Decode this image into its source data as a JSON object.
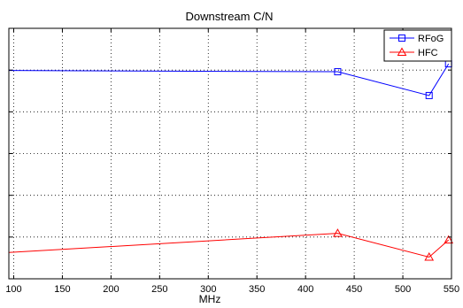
{
  "chart_data": {
    "type": "line",
    "title": "Downstream C/N",
    "xlabel": "MHz",
    "ylabel": "",
    "xlim": [
      95,
      550
    ],
    "ylim": [
      0,
      6
    ],
    "xticks": [
      100,
      150,
      200,
      250,
      300,
      350,
      400,
      450,
      500,
      550
    ],
    "yticks": [
      0,
      1,
      2,
      3,
      4,
      5,
      6
    ],
    "grid": true,
    "legend_position": "top-right",
    "series": [
      {
        "name": "RFoG",
        "color": "#0000ff",
        "marker": "square",
        "x": [
          95,
          433,
          527,
          547
        ],
        "y": [
          4.99,
          4.96,
          4.39,
          5.15
        ]
      },
      {
        "name": "HFC",
        "color": "#ff0000",
        "marker": "triangle",
        "x": [
          95,
          433,
          527,
          547
        ],
        "y": [
          0.63,
          1.09,
          0.52,
          0.93
        ]
      }
    ]
  }
}
